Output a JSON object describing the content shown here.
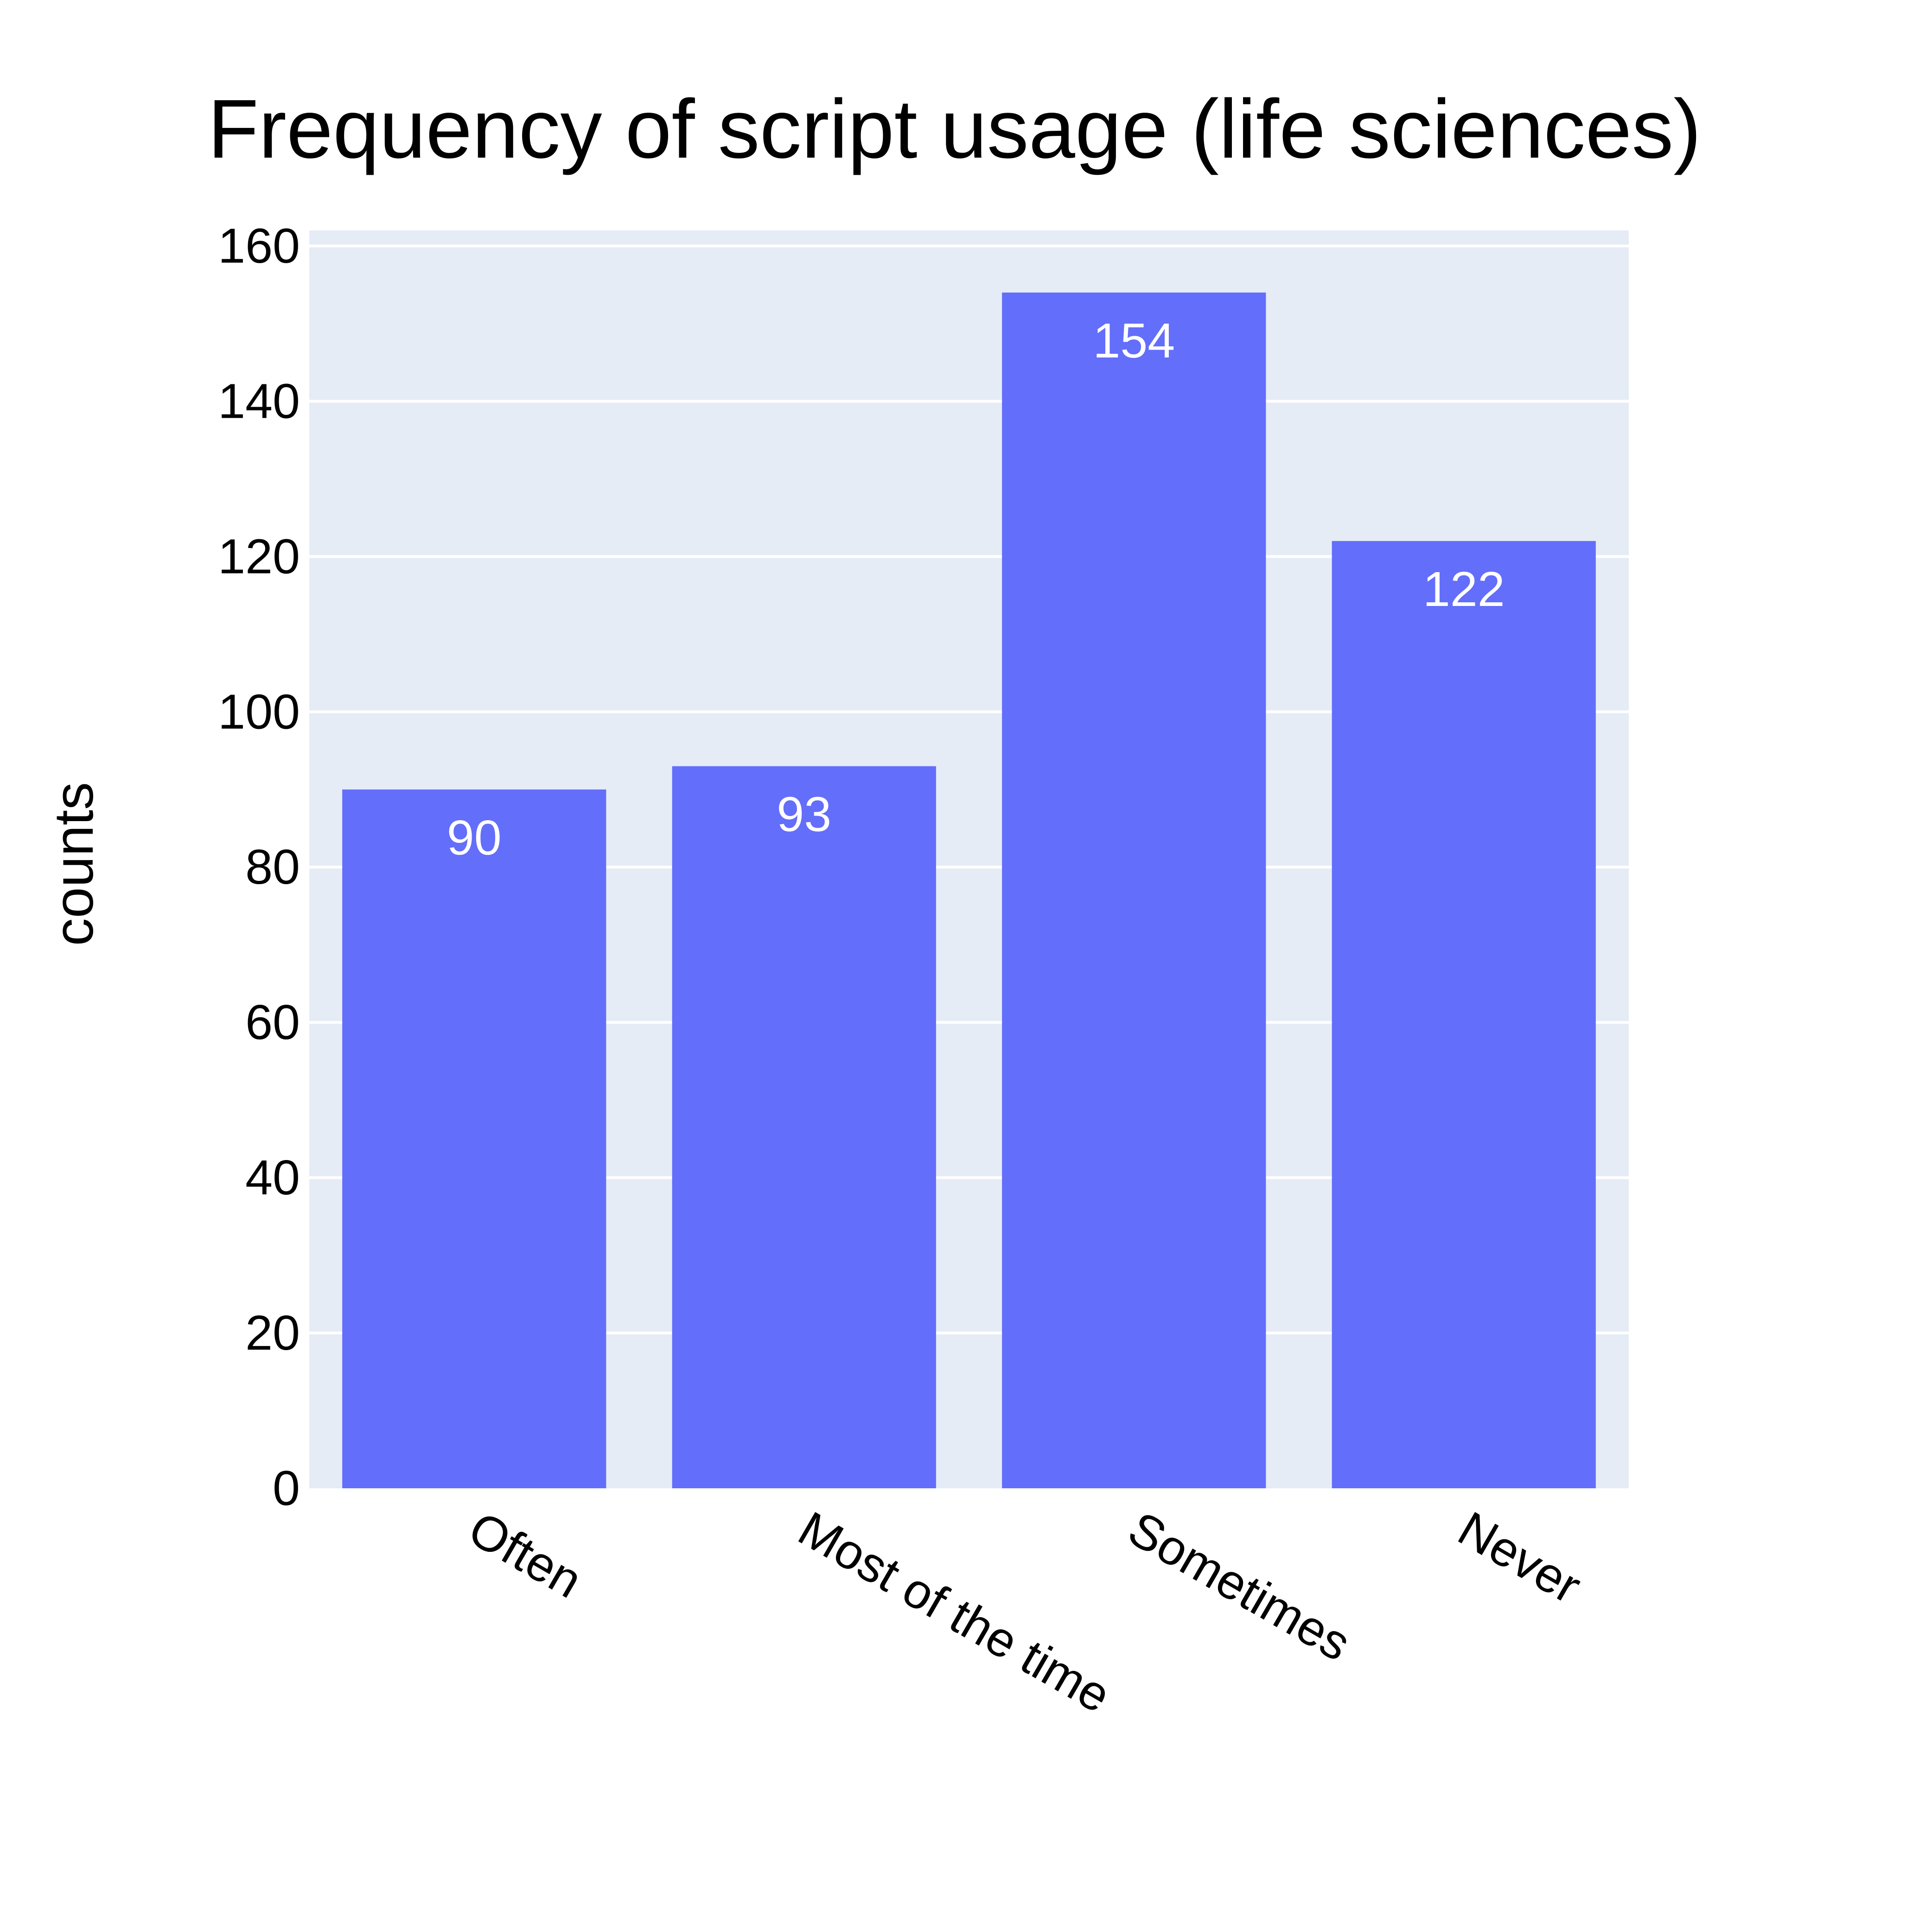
{
  "chart_data": {
    "type": "bar",
    "title": "Frequency of script usage (life sciences)",
    "xlabel": "",
    "ylabel": "counts",
    "categories": [
      "Often",
      "Most of the time",
      "Sometimes",
      "Never"
    ],
    "values": [
      90,
      93,
      154,
      122
    ],
    "data_labels": [
      "90",
      "93",
      "154",
      "122"
    ],
    "yticks": [
      0,
      20,
      40,
      60,
      80,
      100,
      120,
      140,
      160
    ],
    "ytick_labels": [
      "0",
      "20",
      "40",
      "60",
      "80",
      "100",
      "120",
      "140",
      "160"
    ],
    "ylim": [
      0,
      162
    ],
    "grid": true,
    "legend": "none",
    "colors": {
      "bar": "#636efa",
      "plot_background": "#e5ecf6",
      "gridline": "#ffffff",
      "data_label": "#ffffff",
      "text": "#000000"
    }
  }
}
